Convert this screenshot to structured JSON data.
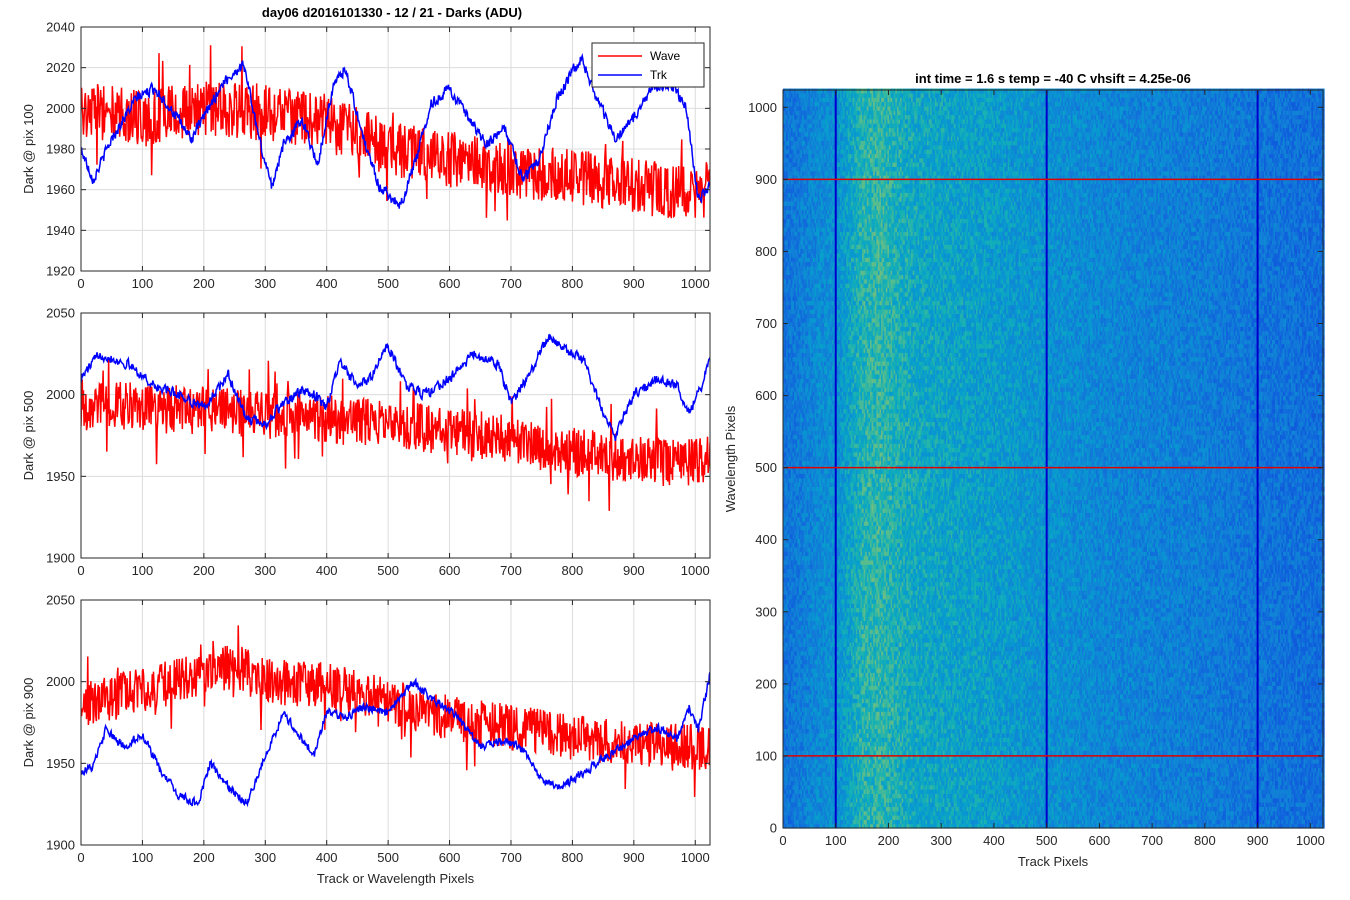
{
  "figure": {
    "title": "day06 d2016101330 - 12 / 21 - Darks (ADU)"
  },
  "chart_data": [
    {
      "type": "line",
      "title": "day06 d2016101330 - 12 / 21 - Darks (ADU)",
      "xlabel": "",
      "ylabel": "Dark @ pix 100",
      "xlim": [
        0,
        1024
      ],
      "ylim": [
        1920,
        2040
      ],
      "xticks": [
        0,
        100,
        200,
        300,
        400,
        500,
        600,
        700,
        800,
        900,
        1000
      ],
      "yticks": [
        1920,
        1940,
        1960,
        1980,
        2000,
        2020,
        2040
      ],
      "grid": true,
      "legend": "top-right",
      "series": [
        {
          "name": "Wave",
          "color": "#ff0000",
          "noise": 14,
          "anchors": [
            [
              0,
              2000
            ],
            [
              100,
              1995
            ],
            [
              200,
              2000
            ],
            [
              300,
              1998
            ],
            [
              400,
              1993
            ],
            [
              500,
              1980
            ],
            [
              600,
              1975
            ],
            [
              700,
              1970
            ],
            [
              800,
              1966
            ],
            [
              900,
              1962
            ],
            [
              1000,
              1958
            ],
            [
              1024,
              1960
            ]
          ]
        },
        {
          "name": "Trk",
          "color": "#0000ff",
          "noise": 3.5,
          "anchors": [
            [
              0,
              1980
            ],
            [
              20,
              1965
            ],
            [
              50,
              1985
            ],
            [
              90,
              2005
            ],
            [
              120,
              2010
            ],
            [
              150,
              1998
            ],
            [
              180,
              1985
            ],
            [
              230,
              2012
            ],
            [
              265,
              2022
            ],
            [
              290,
              1985
            ],
            [
              310,
              1962
            ],
            [
              330,
              1982
            ],
            [
              360,
              1995
            ],
            [
              385,
              1972
            ],
            [
              410,
              2010
            ],
            [
              430,
              2020
            ],
            [
              460,
              1985
            ],
            [
              485,
              1962
            ],
            [
              520,
              1952
            ],
            [
              545,
              1975
            ],
            [
              570,
              2002
            ],
            [
              600,
              2010
            ],
            [
              630,
              1995
            ],
            [
              660,
              1982
            ],
            [
              690,
              1990
            ],
            [
              720,
              1965
            ],
            [
              745,
              1975
            ],
            [
              775,
              2005
            ],
            [
              800,
              2018
            ],
            [
              815,
              2025
            ],
            [
              840,
              2005
            ],
            [
              870,
              1985
            ],
            [
              900,
              1995
            ],
            [
              930,
              2010
            ],
            [
              960,
              2012
            ],
            [
              985,
              2000
            ],
            [
              1005,
              1955
            ],
            [
              1024,
              1962
            ]
          ]
        }
      ]
    },
    {
      "type": "line",
      "title": "",
      "xlabel": "",
      "ylabel": "Dark @ pix 500",
      "xlim": [
        0,
        1024
      ],
      "ylim": [
        1900,
        2050
      ],
      "xticks": [
        0,
        100,
        200,
        300,
        400,
        500,
        600,
        700,
        800,
        900,
        1000
      ],
      "yticks": [
        1900,
        1950,
        2000,
        2050
      ],
      "grid": true,
      "legend": "none",
      "series": [
        {
          "name": "Wave",
          "color": "#ff0000",
          "noise": 15,
          "anchors": [
            [
              0,
              1995
            ],
            [
              100,
              1992
            ],
            [
              200,
              1990
            ],
            [
              300,
              1988
            ],
            [
              400,
              1985
            ],
            [
              500,
              1982
            ],
            [
              600,
              1978
            ],
            [
              700,
              1972
            ],
            [
              800,
              1965
            ],
            [
              900,
              1960
            ],
            [
              1000,
              1958
            ],
            [
              1024,
              1962
            ]
          ]
        },
        {
          "name": "Trk",
          "color": "#0000ff",
          "noise": 4,
          "anchors": [
            [
              0,
              2010
            ],
            [
              30,
              2025
            ],
            [
              80,
              2018
            ],
            [
              120,
              2005
            ],
            [
              160,
              2000
            ],
            [
              200,
              1992
            ],
            [
              240,
              2012
            ],
            [
              270,
              1985
            ],
            [
              300,
              1982
            ],
            [
              330,
              1995
            ],
            [
              360,
              2002
            ],
            [
              380,
              2000
            ],
            [
              400,
              1992
            ],
            [
              420,
              2020
            ],
            [
              450,
              2005
            ],
            [
              470,
              2010
            ],
            [
              500,
              2030
            ],
            [
              530,
              2005
            ],
            [
              560,
              2000
            ],
            [
              600,
              2010
            ],
            [
              640,
              2025
            ],
            [
              680,
              2018
            ],
            [
              700,
              1995
            ],
            [
              730,
              2012
            ],
            [
              760,
              2035
            ],
            [
              790,
              2028
            ],
            [
              820,
              2020
            ],
            [
              850,
              1990
            ],
            [
              870,
              1975
            ],
            [
              900,
              2000
            ],
            [
              940,
              2010
            ],
            [
              970,
              2005
            ],
            [
              990,
              1990
            ],
            [
              1010,
              2005
            ],
            [
              1024,
              2025
            ]
          ]
        }
      ]
    },
    {
      "type": "line",
      "title": "",
      "xlabel": "Track or Wavelength Pixels",
      "ylabel": "Dark @ pix 900",
      "xlim": [
        0,
        1024
      ],
      "ylim": [
        1900,
        2050
      ],
      "xticks": [
        0,
        100,
        200,
        300,
        400,
        500,
        600,
        700,
        800,
        900,
        1000
      ],
      "yticks": [
        1900,
        1950,
        2000,
        2050
      ],
      "grid": true,
      "legend": "none",
      "series": [
        {
          "name": "Wave",
          "color": "#ff0000",
          "noise": 14,
          "anchors": [
            [
              0,
              1985
            ],
            [
              100,
              1995
            ],
            [
              200,
              2005
            ],
            [
              250,
              2010
            ],
            [
              300,
              2000
            ],
            [
              400,
              1998
            ],
            [
              500,
              1988
            ],
            [
              600,
              1978
            ],
            [
              700,
              1972
            ],
            [
              800,
              1966
            ],
            [
              900,
              1962
            ],
            [
              1000,
              1960
            ],
            [
              1024,
              1958
            ]
          ]
        },
        {
          "name": "Trk",
          "color": "#0000ff",
          "noise": 3.5,
          "anchors": [
            [
              0,
              1945
            ],
            [
              20,
              1948
            ],
            [
              40,
              1970
            ],
            [
              70,
              1960
            ],
            [
              100,
              1968
            ],
            [
              130,
              1945
            ],
            [
              160,
              1930
            ],
            [
              190,
              1925
            ],
            [
              210,
              1950
            ],
            [
              240,
              1935
            ],
            [
              270,
              1925
            ],
            [
              300,
              1955
            ],
            [
              330,
              1980
            ],
            [
              360,
              1965
            ],
            [
              380,
              1955
            ],
            [
              400,
              1982
            ],
            [
              430,
              1978
            ],
            [
              460,
              1985
            ],
            [
              500,
              1980
            ],
            [
              540,
              2000
            ],
            [
              570,
              1990
            ],
            [
              610,
              1980
            ],
            [
              650,
              1960
            ],
            [
              690,
              1965
            ],
            [
              720,
              1958
            ],
            [
              750,
              1940
            ],
            [
              780,
              1935
            ],
            [
              820,
              1945
            ],
            [
              860,
              1955
            ],
            [
              900,
              1965
            ],
            [
              940,
              1972
            ],
            [
              970,
              1965
            ],
            [
              990,
              1985
            ],
            [
              1005,
              1970
            ],
            [
              1024,
              2005
            ]
          ]
        }
      ]
    },
    {
      "type": "heatmap",
      "title": "int time = 1.6 s   temp = -40 C   vhsift = 4.25e-06",
      "xlabel": "Track Pixels",
      "ylabel": "Wavelength Pixels",
      "xlim": [
        0,
        1024
      ],
      "ylim": [
        0,
        1024
      ],
      "xticks": [
        0,
        100,
        200,
        300,
        400,
        500,
        600,
        700,
        800,
        900,
        1000
      ],
      "yticks": [
        0,
        100,
        200,
        300,
        400,
        500,
        600,
        700,
        800,
        900,
        1000
      ],
      "colormap": "parula",
      "column_profile": [
        [
          0,
          0.35
        ],
        [
          60,
          0.45
        ],
        [
          100,
          0.5
        ],
        [
          150,
          0.66
        ],
        [
          180,
          0.68
        ],
        [
          250,
          0.6
        ],
        [
          400,
          0.55
        ],
        [
          500,
          0.5
        ],
        [
          600,
          0.45
        ],
        [
          800,
          0.4
        ],
        [
          900,
          0.36
        ],
        [
          1024,
          0.33
        ]
      ],
      "vertical_markers": {
        "positions": [
          100,
          500,
          900
        ],
        "color": "#0000cc"
      },
      "horizontal_markers": {
        "positions": [
          100,
          500,
          900
        ],
        "color": "#e00000"
      }
    }
  ]
}
